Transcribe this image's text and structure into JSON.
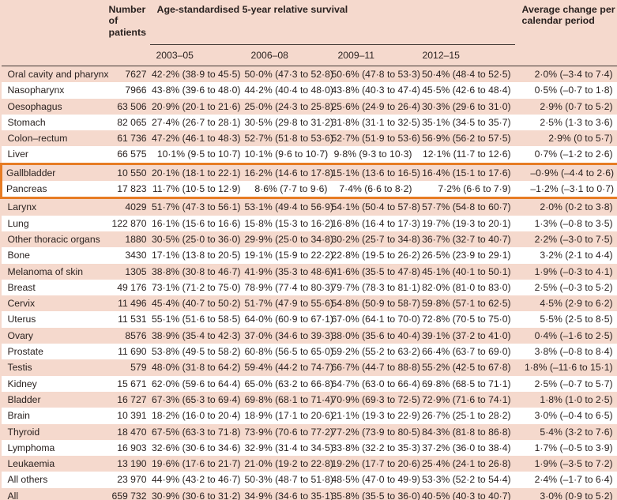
{
  "colors": {
    "row_pink": "#f5d9cd",
    "row_white": "#ffffff",
    "highlight_orange": "#e77c24",
    "rule_dark": "#3f3733",
    "text": "#2a2220"
  },
  "header": {
    "site": "",
    "patients": "Number of patients",
    "survival": "Age-standardised 5-year relative survival",
    "change": "Average change per calendar period",
    "periods": [
      "2003–05",
      "2006–08",
      "2009–11",
      "2012–15"
    ]
  },
  "highlight": {
    "first_row_index": 6,
    "last_row_index": 7,
    "rows": [
      "Gallbladder",
      "Pancreas"
    ]
  },
  "rows": [
    {
      "site": "Oral cavity and pharynx",
      "patients": "7627",
      "s1": "42·2% (38·9 to 45·5)",
      "s2": "50·0% (47·3 to 52·8)",
      "s3": "50·6% (47·8 to 53·3)",
      "s4": "50·4% (48·4 to 52·5)",
      "change": "2·0% (–3·4 to 7·4)"
    },
    {
      "site": "Nasopharynx",
      "patients": "7966",
      "s1": "43·8% (39·6 to 48·0)",
      "s2": "44·2% (40·4 to 48·0)",
      "s3": "43·8% (40·3 to 47·4)",
      "s4": "45·5% (42·6 to 48·4)",
      "change": "0·5% (–0·7 to 1·8)"
    },
    {
      "site": "Oesophagus",
      "patients": "63 506",
      "s1": "20·9% (20·1 to 21·6)",
      "s2": "25·0% (24·3 to 25·8)",
      "s3": "25·6% (24·9 to 26·4)",
      "s4": "30·3% (29·6 to 31·0)",
      "change": "2·9% (0·7 to 5·2)"
    },
    {
      "site": "Stomach",
      "patients": "82 065",
      "s1": "27·4% (26·7 to 28·1)",
      "s2": "30·5% (29·8 to 31·2)",
      "s3": "31·8% (31·1 to 32·5)",
      "s4": "35·1% (34·5 to 35·7)",
      "change": "2·5% (1·3 to 3·6)"
    },
    {
      "site": "Colon–rectum",
      "patients": "61 736",
      "s1": "47·2% (46·1 to 48·3)",
      "s2": "52·7% (51·8 to 53·6)",
      "s3": "52·7% (51·9 to 53·6)",
      "s4": "56·9% (56·2 to 57·5)",
      "change": "2·9% (0 to 5·7)"
    },
    {
      "site": "Liver",
      "patients": "66 575",
      "s1": "10·1% (9·5 to 10·7)",
      "s2": "10·1% (9·6 to 10·7)",
      "s3": "9·8% (9·3 to 10·3)",
      "s4": "12·1% (11·7 to 12·6)",
      "change": "0·7% (–1·2 to 2·6)"
    },
    {
      "site": "Gallbladder",
      "patients": "10 550",
      "s1": "20·1% (18·1 to 22·1)",
      "s2": "16·2% (14·6 to 17·8)",
      "s3": "15·1% (13·6 to 16·5)",
      "s4": "16·4% (15·1 to 17·6)",
      "change": "–0·9% (–4·4 to 2·6)"
    },
    {
      "site": "Pancreas",
      "patients": "17 823",
      "s1": "11·7% (10·5 to 12·9)",
      "s2": "8·6% (7·7 to 9·6)",
      "s3": "7·4% (6·6 to 8·2)",
      "s4": "7·2% (6·6 to 7·9)",
      "change": "–1·2% (–3·1 to 0·7)"
    },
    {
      "site": "Larynx",
      "patients": "4029",
      "s1": "51·7% (47·3 to 56·1)",
      "s2": "53·1% (49·4 to 56·9)",
      "s3": "54·1% (50·4 to 57·8)",
      "s4": "57·7% (54·8 to 60·7)",
      "change": "2·0% (0·2 to 3·8)"
    },
    {
      "site": "Lung",
      "patients": "122 870",
      "s1": "16·1% (15·6 to 16·6)",
      "s2": "15·8% (15·3 to 16·2)",
      "s3": "16·8% (16·4 to 17·3)",
      "s4": "19·7% (19·3 to 20·1)",
      "change": "1·3% (–0·8 to 3·5)"
    },
    {
      "site": "Other thoracic organs",
      "patients": "1880",
      "s1": "30·5% (25·0 to 36·0)",
      "s2": "29·9% (25·0 to 34·8)",
      "s3": "30·2% (25·7 to 34·8)",
      "s4": "36·7% (32·7 to 40·7)",
      "change": "2·2% (–3·0 to 7·5)"
    },
    {
      "site": "Bone",
      "patients": "3430",
      "s1": "17·1% (13·8 to 20·5)",
      "s2": "19·1% (15·9 to 22·2)",
      "s3": "22·8% (19·5 to 26·2)",
      "s4": "26·5% (23·9 to 29·1)",
      "change": "3·2% (2·1 to 4·4)"
    },
    {
      "site": "Melanoma of skin",
      "patients": "1305",
      "s1": "38·8% (30·8 to 46·7)",
      "s2": "41·9% (35·3 to 48·6)",
      "s3": "41·6% (35·5 to 47·8)",
      "s4": "45·1% (40·1 to 50·1)",
      "change": "1·9% (–0·3 to 4·1)"
    },
    {
      "site": "Breast",
      "patients": "49 176",
      "s1": "73·1% (71·2 to 75·0)",
      "s2": "78·9% (77·4 to 80·3)",
      "s3": "79·7% (78·3 to 81·1)",
      "s4": "82·0% (81·0 to 83·0)",
      "change": "2·5% (–0·3 to 5·2)"
    },
    {
      "site": "Cervix",
      "patients": "11 496",
      "s1": "45·4% (40·7 to 50·2)",
      "s2": "51·7% (47·9 to 55·6)",
      "s3": "54·8% (50·9 to 58·7)",
      "s4": "59·8% (57·1 to 62·5)",
      "change": "4·5% (2·9 to 6·2)"
    },
    {
      "site": "Uterus",
      "patients": "11 531",
      "s1": "55·1% (51·6 to 58·5)",
      "s2": "64·0% (60·9 to 67·1)",
      "s3": "67·0% (64·1 to 70·0)",
      "s4": "72·8% (70·5 to 75·0)",
      "change": "5·5% (2·5 to 8·5)"
    },
    {
      "site": "Ovary",
      "patients": "8576",
      "s1": "38·9% (35·4 to 42·3)",
      "s2": "37·0% (34·6 to 39·3)",
      "s3": "38·0% (35·6 to 40·4)",
      "s4": "39·1% (37·2 to 41·0)",
      "change": "0·4% (–1·6 to 2·5)"
    },
    {
      "site": "Prostate",
      "patients": "11 690",
      "s1": "53·8% (49·5 to 58·2)",
      "s2": "60·8% (56·5 to 65·0)",
      "s3": "59·2% (55·2 to 63·2)",
      "s4": "66·4% (63·7 to 69·0)",
      "change": "3·8% (–0·8 to 8·4)"
    },
    {
      "site": "Testis",
      "patients": "579",
      "s1": "48·0% (31·8 to 64·2)",
      "s2": "59·4% (44·2 to 74·7)",
      "s3": "66·7% (44·7 to 88·8)",
      "s4": "55·2% (42·5 to 67·8)",
      "change": "1·8% (–11·6 to 15·1)"
    },
    {
      "site": "Kidney",
      "patients": "15 671",
      "s1": "62·0% (59·6 to 64·4)",
      "s2": "65·0% (63·2 to 66·8)",
      "s3": "64·7% (63·0 to 66·4)",
      "s4": "69·8% (68·5 to 71·1)",
      "change": "2·5% (–0·7 to 5·7)"
    },
    {
      "site": "Bladder",
      "patients": "16 727",
      "s1": "67·3% (65·3 to 69·4)",
      "s2": "69·8% (68·1 to 71·4)",
      "s3": "70·9% (69·3 to 72·5)",
      "s4": "72·9% (71·6 to 74·1)",
      "change": "1·8% (1·0 to 2·5)"
    },
    {
      "site": "Brain",
      "patients": "10 391",
      "s1": "18·2% (16·0 to 20·4)",
      "s2": "18·9% (17·1 to 20·6)",
      "s3": "21·1% (19·3 to 22·9)",
      "s4": "26·7% (25·1 to 28·2)",
      "change": "3·0% (–0·4 to 6·5)"
    },
    {
      "site": "Thyroid",
      "patients": "18 470",
      "s1": "67·5% (63·3 to 71·8)",
      "s2": "73·9% (70·6 to 77·2)",
      "s3": "77·2% (73·9 to 80·5)",
      "s4": "84·3% (81·8 to 86·8)",
      "change": "5·4% (3·2 to 7·6)"
    },
    {
      "site": "Lymphoma",
      "patients": "16 903",
      "s1": "32·6% (30·6 to 34·6)",
      "s2": "32·9% (31·4 to 34·5)",
      "s3": "33·8% (32·2 to 35·3)",
      "s4": "37·2% (36·0 to 38·4)",
      "change": "1·7% (–0·5 to 3·9)"
    },
    {
      "site": "Leukaemia",
      "patients": "13 190",
      "s1": "19·6% (17·6 to 21·7)",
      "s2": "21·0% (19·2 to 22·8)",
      "s3": "19·2% (17·7 to 20·6)",
      "s4": "25·4% (24·1 to 26·8)",
      "change": "1·9% (–3·5 to 7·2)"
    },
    {
      "site": "All others",
      "patients": "23 970",
      "s1": "44·9% (43·2 to 46·7)",
      "s2": "50·3% (48·7 to 51·8)",
      "s3": "48·5% (47·0 to 49·9)",
      "s4": "53·3% (52·2 to 54·4)",
      "change": "2·4% (–1·7 to 6·4)"
    },
    {
      "site": "All",
      "patients": "659 732",
      "s1": "30·9% (30·6 to 31·2)",
      "s2": "34·9% (34·6 to 35·1)",
      "s3": "35·8% (35·5 to 36·0)",
      "s4": "40·5% (40·3 to 40·7)",
      "change": "3·0% (0·9 to 5·2)"
    }
  ]
}
